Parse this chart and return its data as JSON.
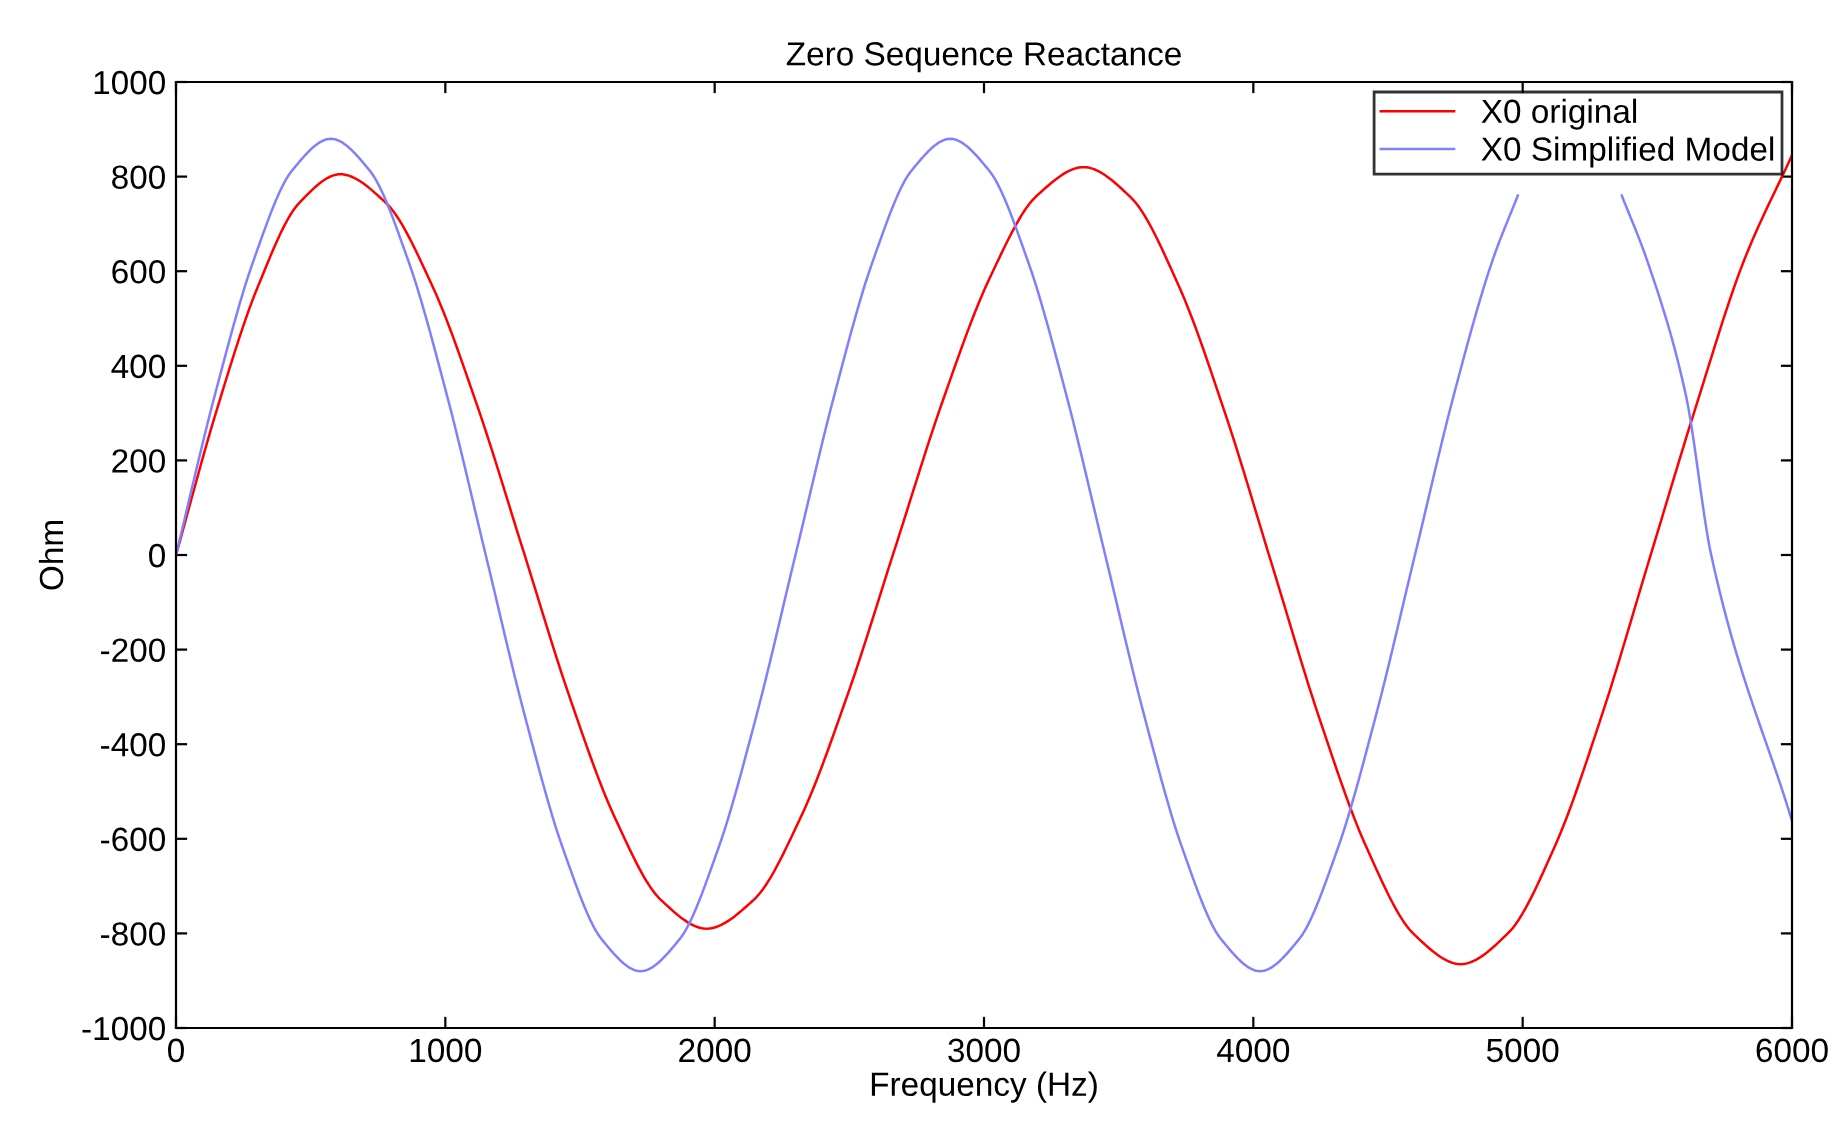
{
  "chart_data": {
    "type": "line",
    "title": "Zero Sequence Reactance",
    "xlabel": "Frequency (Hz)",
    "ylabel": "Ohm",
    "xlim": [
      0,
      6000
    ],
    "xticks": [
      0,
      1000,
      2000,
      3000,
      4000,
      5000,
      6000
    ],
    "ylim": [
      -1000,
      1000
    ],
    "yticks": [
      -1000,
      -800,
      -600,
      -400,
      -200,
      0,
      200,
      400,
      600,
      800,
      1000
    ],
    "grid": false,
    "legend": "top right",
    "marker": "none",
    "line_style": "solid",
    "series": [
      {
        "name": "X0 original",
        "color": "#ff0000",
        "x": [
          0,
          152,
          305,
          457,
          610,
          780,
          950,
          1120,
          1290,
          1460,
          1630,
          1800,
          1970,
          2145,
          2320,
          2495,
          2670,
          2845,
          3020,
          3195,
          3370,
          3545,
          3720,
          3895,
          4070,
          4245,
          4420,
          4595,
          4770,
          4945,
          5120,
          5295,
          5470,
          5645,
          5820,
          6000
        ],
        "values": [
          0,
          308,
          569,
          744,
          805,
          744,
          571,
          313,
          8,
          -298,
          -556,
          -729,
          -790,
          -729,
          -554,
          -293,
          15,
          323,
          584,
          759,
          820,
          756,
          573,
          300,
          -22,
          -345,
          -618,
          -801,
          -865,
          -800,
          -615,
          -337,
          -10,
          317,
          620,
          845
        ]
      },
      {
        "name": "X0 Simplified Model",
        "color": "#8080ff",
        "x": [
          0,
          143.75,
          287.5,
          431.25,
          575,
          718.75,
          862.5,
          1006.25,
          1150,
          1293.75,
          1437.5,
          1581.25,
          1725,
          1868.75,
          2012.5,
          2156.25,
          2300,
          2443.75,
          2587.5,
          2731.25,
          2875,
          3018.75,
          3162.5,
          3306.25,
          3450,
          3593.75,
          3737.5,
          3881.25,
          4025,
          4168.75,
          4312.5,
          4456.25,
          4600,
          4743.75,
          4887.5,
          4982,
          5031.25,
          5175,
          5318.75,
          5368,
          5462.5,
          5606.25,
          5700,
          6000
        ],
        "values": [
          0,
          337,
          622,
          813,
          880,
          813,
          622,
          337,
          0,
          -337,
          -622,
          -813,
          -880,
          -813,
          -622,
          -337,
          0,
          337,
          622,
          813,
          880,
          813,
          622,
          337,
          0,
          -337,
          -622,
          -813,
          -880,
          -813,
          -622,
          -337,
          0,
          337,
          622,
          760,
          null,
          null,
          null,
          760,
          622,
          337,
          0,
          -562
        ]
      }
    ]
  }
}
